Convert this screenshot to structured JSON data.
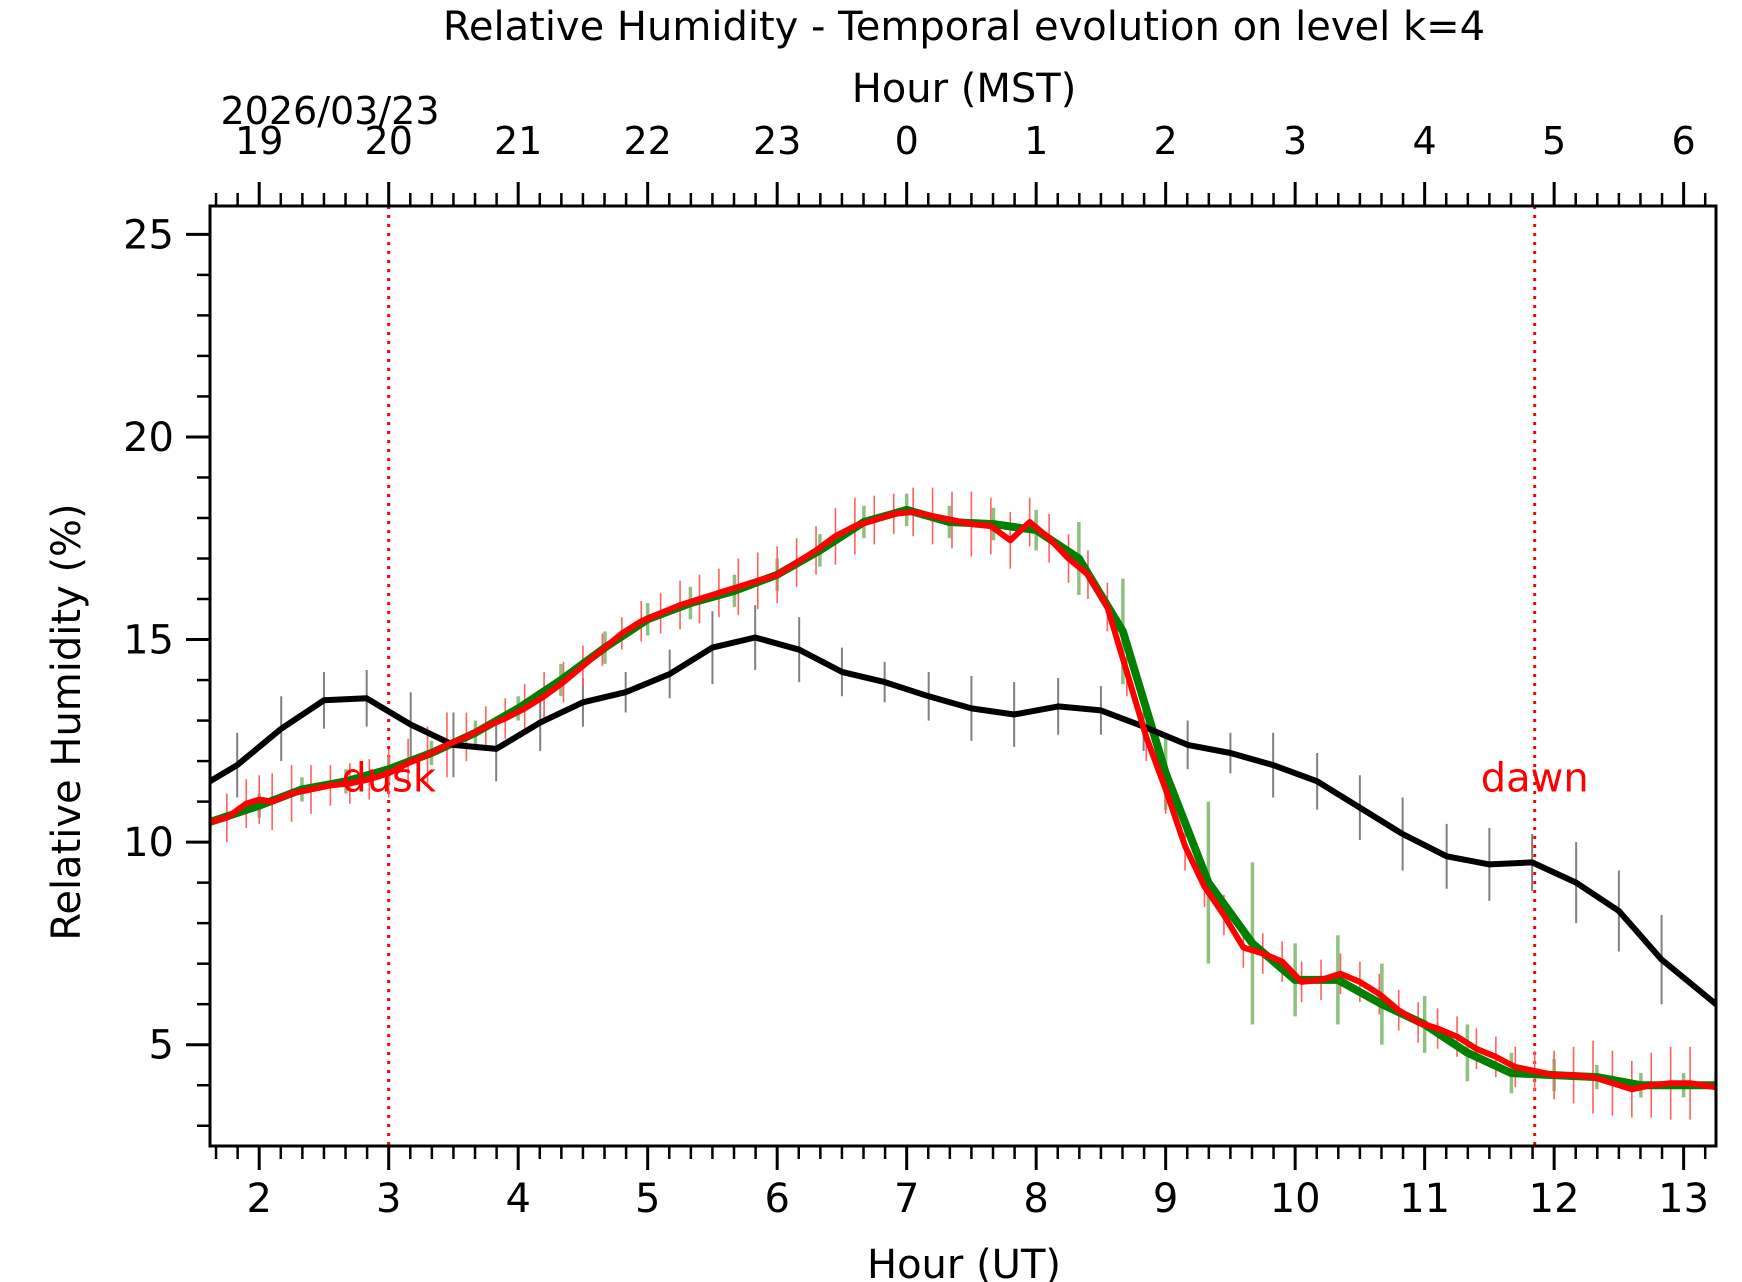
{
  "chart_data": {
    "type": "line",
    "title": "Relative Humidity - Temporal evolution on level k=4",
    "xlabel": "Hour (UT)",
    "xlabel_top": "Hour (MST)",
    "ylabel": "Relative Humidity (%)",
    "date_label": "2026/03/23",
    "xlim": [
      1.62,
      13.25
    ],
    "ylim": [
      2.5,
      25.7
    ],
    "x_ticks": [
      2,
      3,
      4,
      5,
      6,
      7,
      8,
      9,
      10,
      11,
      12,
      13
    ],
    "x_tick_labels": [
      "2",
      "3",
      "4",
      "5",
      "6",
      "7",
      "8",
      "9",
      "10",
      "11",
      "12",
      "13"
    ],
    "y_ticks": [
      5,
      10,
      15,
      20,
      25
    ],
    "y_tick_labels": [
      "5",
      "10",
      "15",
      "20",
      "25"
    ],
    "top_ticks_ut": [
      2,
      3,
      4,
      5,
      6,
      7,
      8,
      9,
      10,
      11,
      12,
      13
    ],
    "top_tick_labels": [
      "19",
      "20",
      "21",
      "22",
      "23",
      "0",
      "1",
      "2",
      "3",
      "4",
      "5",
      "6"
    ],
    "annotations": [
      {
        "text": "dusk",
        "x": 3.0,
        "y": 11.6
      },
      {
        "text": "dawn",
        "x": 11.85,
        "y": 11.6
      }
    ],
    "vlines": [
      3.0,
      11.85
    ],
    "colors": {
      "black": "#000000",
      "red": "#ff0000",
      "green": "#008000",
      "green_err": "#90c080",
      "black_err": "#808080",
      "red_err": "#ff6060"
    },
    "series": [
      {
        "name": "black",
        "color": "#000000",
        "x": [
          1.62,
          1.83,
          2.17,
          2.5,
          2.83,
          3.17,
          3.5,
          3.83,
          4.17,
          4.5,
          4.83,
          5.17,
          5.5,
          5.83,
          6.17,
          6.5,
          6.83,
          7.17,
          7.5,
          7.83,
          8.17,
          8.5,
          8.83,
          9.17,
          9.5,
          9.83,
          10.17,
          10.5,
          10.83,
          11.17,
          11.5,
          11.83,
          12.17,
          12.5,
          12.83,
          13.25
        ],
        "y": [
          11.5,
          11.9,
          12.8,
          13.5,
          13.55,
          12.9,
          12.4,
          12.3,
          12.95,
          13.45,
          13.7,
          14.15,
          14.8,
          15.05,
          14.75,
          14.2,
          13.95,
          13.6,
          13.3,
          13.15,
          13.35,
          13.25,
          12.85,
          12.4,
          12.2,
          11.9,
          11.5,
          10.85,
          10.2,
          9.65,
          9.45,
          9.5,
          9.0,
          8.3,
          7.1,
          6.0
        ],
        "err": [
          0.8,
          0.8,
          0.8,
          0.7,
          0.7,
          0.8,
          0.8,
          0.8,
          0.7,
          0.6,
          0.5,
          0.6,
          0.9,
          0.8,
          0.8,
          0.6,
          0.5,
          0.6,
          0.8,
          0.8,
          0.7,
          0.6,
          0.6,
          0.6,
          0.5,
          0.8,
          0.7,
          0.8,
          0.9,
          0.8,
          0.9,
          0.7,
          1.0,
          1.0,
          1.1,
          1.4
        ]
      },
      {
        "name": "green",
        "color": "#008000",
        "x": [
          1.62,
          2.0,
          2.33,
          2.67,
          3.0,
          3.33,
          3.67,
          4.0,
          4.33,
          4.67,
          5.0,
          5.33,
          5.67,
          6.0,
          6.33,
          6.67,
          7.0,
          7.33,
          7.67,
          8.0,
          8.33,
          8.67,
          9.0,
          9.33,
          9.67,
          10.0,
          10.33,
          10.67,
          11.0,
          11.33,
          11.67,
          12.0,
          12.33,
          12.67,
          13.0,
          13.25
        ],
        "y": [
          10.5,
          10.9,
          11.3,
          11.5,
          11.8,
          12.2,
          12.7,
          13.3,
          14.0,
          14.8,
          15.5,
          15.9,
          16.2,
          16.6,
          17.2,
          17.9,
          18.2,
          17.9,
          17.85,
          17.7,
          17.0,
          15.2,
          11.7,
          9.0,
          7.5,
          6.6,
          6.6,
          6.0,
          5.5,
          4.8,
          4.3,
          4.25,
          4.2,
          4.0,
          4.0,
          4.0
        ],
        "err": [
          0.3,
          0.3,
          0.3,
          0.3,
          0.3,
          0.3,
          0.3,
          0.3,
          0.4,
          0.4,
          0.4,
          0.4,
          0.4,
          0.4,
          0.4,
          0.4,
          0.4,
          0.4,
          0.4,
          0.5,
          0.9,
          1.3,
          0.9,
          2.0,
          2.0,
          0.9,
          1.1,
          1.0,
          0.7,
          0.7,
          0.5,
          0.4,
          0.3,
          0.3,
          0.3,
          0.3
        ]
      },
      {
        "name": "red",
        "color": "#ff0000",
        "x": [
          1.62,
          1.75,
          1.9,
          2.0,
          2.1,
          2.25,
          2.4,
          2.55,
          2.7,
          2.85,
          3.0,
          3.15,
          3.3,
          3.45,
          3.6,
          3.75,
          3.9,
          4.05,
          4.2,
          4.35,
          4.5,
          4.65,
          4.8,
          4.95,
          5.1,
          5.25,
          5.4,
          5.55,
          5.7,
          5.85,
          6.0,
          6.15,
          6.3,
          6.45,
          6.6,
          6.75,
          6.9,
          7.05,
          7.2,
          7.35,
          7.5,
          7.65,
          7.8,
          7.95,
          8.1,
          8.25,
          8.4,
          8.55,
          8.7,
          8.85,
          9.0,
          9.15,
          9.3,
          9.45,
          9.6,
          9.75,
          9.9,
          10.05,
          10.2,
          10.35,
          10.5,
          10.65,
          10.8,
          10.95,
          11.1,
          11.25,
          11.4,
          11.55,
          11.7,
          11.85,
          12.0,
          12.15,
          12.3,
          12.45,
          12.6,
          12.75,
          12.9,
          13.05,
          13.25
        ],
        "y": [
          10.5,
          10.6,
          10.95,
          11.05,
          11.0,
          11.2,
          11.3,
          11.4,
          11.45,
          11.55,
          11.7,
          11.95,
          12.15,
          12.4,
          12.6,
          12.85,
          13.05,
          13.3,
          13.6,
          13.95,
          14.35,
          14.75,
          15.15,
          15.45,
          15.65,
          15.85,
          16.0,
          16.15,
          16.3,
          16.45,
          16.6,
          16.9,
          17.2,
          17.55,
          17.8,
          17.95,
          18.1,
          18.15,
          18.05,
          17.95,
          17.85,
          17.8,
          17.45,
          17.9,
          17.5,
          17.0,
          16.6,
          15.8,
          14.2,
          12.6,
          11.3,
          9.9,
          8.9,
          8.2,
          7.4,
          7.25,
          7.05,
          6.55,
          6.6,
          6.75,
          6.55,
          6.25,
          5.85,
          5.55,
          5.4,
          5.2,
          4.9,
          4.7,
          4.45,
          4.35,
          4.25,
          4.25,
          4.2,
          4.05,
          3.9,
          4.0,
          4.05,
          4.05,
          3.95
        ],
        "err": [
          0.6,
          0.6,
          0.6,
          0.6,
          0.7,
          0.7,
          0.6,
          0.5,
          0.5,
          0.5,
          0.6,
          0.6,
          0.7,
          0.8,
          0.6,
          0.5,
          0.5,
          0.6,
          0.6,
          0.5,
          0.5,
          0.4,
          0.4,
          0.5,
          0.5,
          0.6,
          0.6,
          0.6,
          0.7,
          0.7,
          0.7,
          0.6,
          0.6,
          0.7,
          0.7,
          0.6,
          0.5,
          0.6,
          0.7,
          0.7,
          0.8,
          0.7,
          0.7,
          0.6,
          0.6,
          0.6,
          0.6,
          0.6,
          0.6,
          0.6,
          0.6,
          0.6,
          0.5,
          0.5,
          0.5,
          0.5,
          0.5,
          0.5,
          0.5,
          0.5,
          0.5,
          0.5,
          0.5,
          0.5,
          0.5,
          0.5,
          0.5,
          0.5,
          0.5,
          0.5,
          0.6,
          0.7,
          0.9,
          0.8,
          0.7,
          0.8,
          0.9,
          0.9,
          1.2
        ]
      }
    ]
  }
}
